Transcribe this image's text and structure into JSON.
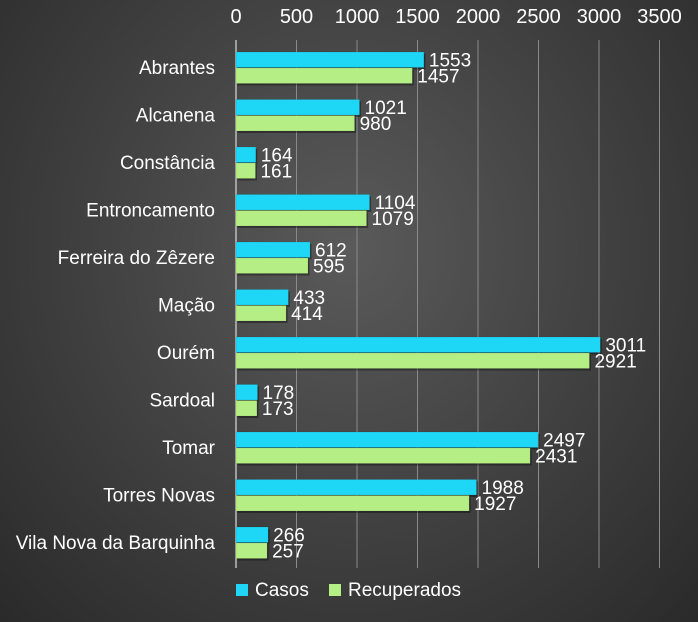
{
  "chart_data": {
    "type": "bar",
    "orientation": "horizontal",
    "categories": [
      "Abrantes",
      "Alcanena",
      "Constância",
      "Entroncamento",
      "Ferreira do Zêzere",
      "Mação",
      "Ourém",
      "Sardoal",
      "Tomar",
      "Torres Novas",
      "Vila Nova da Barquinha"
    ],
    "series": [
      {
        "name": "Casos",
        "color": "#1ed6f5",
        "values": [
          1553,
          1021,
          164,
          1104,
          612,
          433,
          3011,
          178,
          2497,
          1988,
          266
        ]
      },
      {
        "name": "Recuperados",
        "color": "#b5ee84",
        "values": [
          1457,
          980,
          161,
          1079,
          595,
          414,
          2921,
          173,
          2431,
          1927,
          257
        ]
      }
    ],
    "xlim": [
      0,
      3500
    ],
    "xticks": [
      "0",
      "500",
      "1000",
      "1500",
      "2000",
      "2500",
      "3000",
      "3500"
    ],
    "x_axis_position": "top",
    "grid": true,
    "legend_position": "bottom-left",
    "title": "",
    "xlabel": "",
    "ylabel": ""
  }
}
